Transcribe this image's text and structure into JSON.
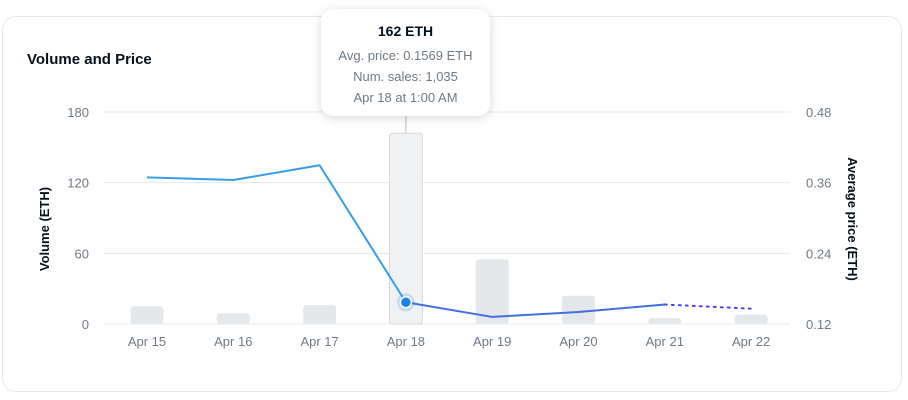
{
  "chart_data": {
    "type": "bar",
    "title": "Volume and Price",
    "categories": [
      "Apr 15",
      "Apr 16",
      "Apr 17",
      "Apr 18",
      "Apr 19",
      "Apr 20",
      "Apr 21",
      "Apr 22"
    ],
    "series": [
      {
        "name": "Volume (ETH)",
        "type": "bar",
        "axis": "left",
        "values": [
          15,
          9,
          16,
          162,
          55,
          24,
          5,
          8
        ]
      },
      {
        "name": "Average price (ETH)",
        "type": "line",
        "axis": "right",
        "values": [
          0.3689,
          0.3645,
          0.3896,
          0.1569,
          0.132,
          0.1403,
          0.1531,
          0.146
        ],
        "dotted_from_index": 6
      }
    ],
    "ylabel": "Volume (ETH)",
    "y2label": "Average price (ETH)",
    "ylim": [
      0,
      180
    ],
    "y2lim": [
      0.12,
      0.48
    ],
    "yticks": [
      "0",
      "60",
      "120",
      "180"
    ],
    "y2ticks": [
      "0.12",
      "0.24",
      "0.36",
      "0.48"
    ],
    "grid": true,
    "colors": {
      "bar": "#e5e8eb",
      "bar_highlight": "#eff1f3",
      "line": "#3a9de4",
      "line_dim": "#3f6fe0",
      "dotted": "#4f43e8",
      "marker": "#2081e2",
      "grid": "#e5e8eb"
    },
    "highlight_index": 3
  },
  "tooltip": {
    "title": "162 ETH",
    "lines": [
      "Avg. price: 0.1569 ETH",
      "Num. sales: 1,035",
      "Apr 18 at 1:00 AM"
    ]
  }
}
